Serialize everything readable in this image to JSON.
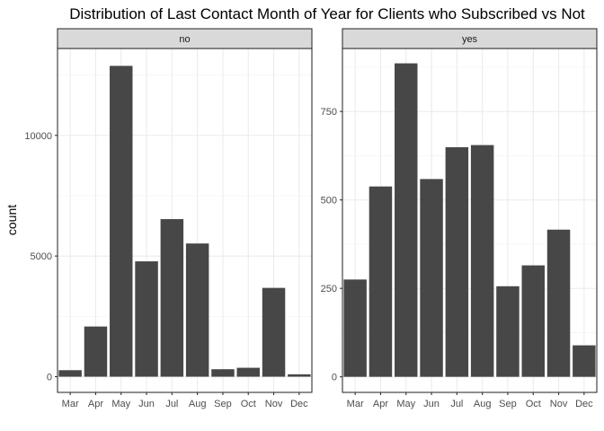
{
  "chart_data": {
    "type": "bar",
    "title": "Distribution of Last Contact Month of Year for Clients who Subscribed vs Not",
    "ylabel": "count",
    "xlabel": "",
    "categories": [
      "Mar",
      "Apr",
      "May",
      "Jun",
      "Jul",
      "Aug",
      "Sep",
      "Oct",
      "Nov",
      "Dec"
    ],
    "grid": true,
    "legend": "none",
    "bar_color": "#474747",
    "strip_color": "#d9d9d9",
    "panels": [
      {
        "strip_label": "no",
        "values": [
          270,
          2080,
          12880,
          4780,
          6530,
          5520,
          310,
          370,
          3680,
          100
        ],
        "ylim": [
          -650,
          13600
        ],
        "yticks": [
          0,
          5000,
          10000
        ],
        "ytick_labels": [
          "0",
          "5000",
          "10000"
        ]
      },
      {
        "strip_label": "yes",
        "values": [
          275,
          538,
          886,
          559,
          649,
          655,
          256,
          315,
          416,
          89
        ],
        "ylim": [
          -44,
          928
        ],
        "yticks": [
          0,
          250,
          500,
          750
        ],
        "ytick_labels": [
          "0",
          "250",
          "500",
          "750"
        ]
      }
    ]
  }
}
